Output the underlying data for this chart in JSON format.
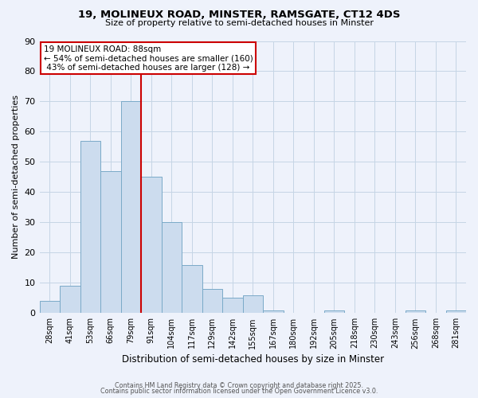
{
  "title_line1": "19, MOLINEUX ROAD, MINSTER, RAMSGATE, CT12 4DS",
  "title_line2": "Size of property relative to semi-detached houses in Minster",
  "xlabel": "Distribution of semi-detached houses by size in Minster",
  "ylabel": "Number of semi-detached properties",
  "categories": [
    "28sqm",
    "41sqm",
    "53sqm",
    "66sqm",
    "79sqm",
    "91sqm",
    "104sqm",
    "117sqm",
    "129sqm",
    "142sqm",
    "155sqm",
    "167sqm",
    "180sqm",
    "192sqm",
    "205sqm",
    "218sqm",
    "230sqm",
    "243sqm",
    "256sqm",
    "268sqm",
    "281sqm"
  ],
  "values": [
    4,
    9,
    57,
    47,
    70,
    45,
    30,
    16,
    8,
    5,
    6,
    1,
    0,
    0,
    1,
    0,
    0,
    0,
    1,
    0,
    1
  ],
  "bar_color": "#ccdcee",
  "bar_edge_color": "#7aaac8",
  "grid_color": "#c5d5e5",
  "background_color": "#eef2fb",
  "annotation_line1": "19 MOLINEUX ROAD: 88sqm",
  "annotation_line2": "← 54% of semi-detached houses are smaller (160)",
  "annotation_line3": " 43% of semi-detached houses are larger (128) →",
  "annotation_box_color": "#ffffff",
  "annotation_box_edge_color": "#cc0000",
  "vline_color": "#cc0000",
  "ylim": [
    0,
    90
  ],
  "yticks": [
    0,
    10,
    20,
    30,
    40,
    50,
    60,
    70,
    80,
    90
  ],
  "footer_line1": "Contains HM Land Registry data © Crown copyright and database right 2025.",
  "footer_line2": "Contains public sector information licensed under the Open Government Licence v3.0."
}
